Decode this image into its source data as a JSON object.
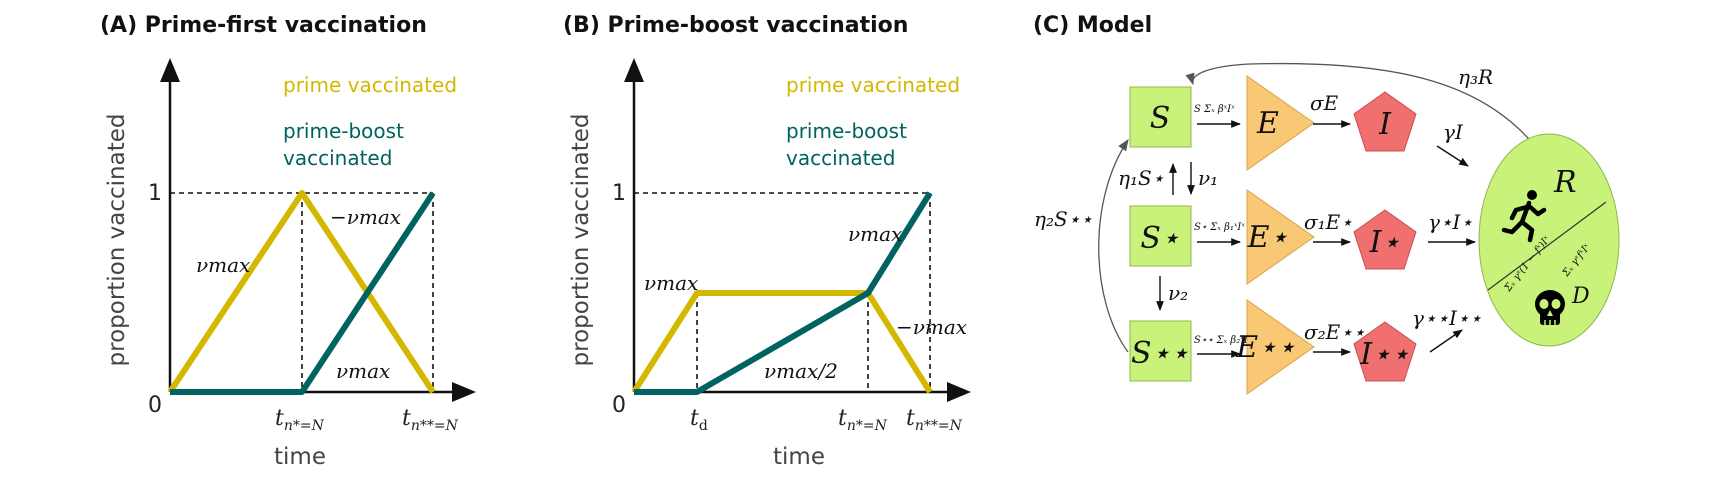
{
  "colors": {
    "prime": "#d4b800",
    "prime_boost": "#006360",
    "S_node": "#c8f27a",
    "E_node": "#f8c874",
    "I_node": "#f07070",
    "R_node": "#c8f27a"
  },
  "panel_a": {
    "title": "(A) Prime-first vaccination",
    "ylabel": "proportion vaccinated",
    "xlabel": "time",
    "y_tick_0": "0",
    "y_tick_1": "1",
    "x_tick_1": "t",
    "x_tick_1_sub": "n*=N",
    "x_tick_2": "t",
    "x_tick_2_sub": "n**=N",
    "legend_prime": "prime vaccinated",
    "legend_pb_1": "prime-boost",
    "legend_pb_2": "vaccinated",
    "rate_up": "νmax",
    "rate_down": "−νmax",
    "rate_boost": "νmax"
  },
  "panel_b": {
    "title": "(B) Prime-boost vaccination",
    "ylabel": "proportion vaccinated",
    "xlabel": "time",
    "y_tick_0": "0",
    "y_tick_1": "1",
    "x_tick_d": "t",
    "x_tick_d_sub": "d",
    "x_tick_1": "t",
    "x_tick_1_sub": "n*=N",
    "x_tick_2": "t",
    "x_tick_2_sub": "n**=N",
    "legend_prime": "prime vaccinated",
    "legend_pb_1": "prime-boost",
    "legend_pb_2": "vaccinated",
    "rate_prime_up": "νmax",
    "rate_half": "νmax/2",
    "rate_boost": "νmax",
    "rate_down": "−νmax"
  },
  "panel_c": {
    "title": "(C) Model",
    "nodes": {
      "S": "S",
      "S1": "S⋆",
      "S2": "S⋆⋆",
      "E": "E",
      "E1": "E⋆",
      "E2": "E⋆⋆",
      "I": "I",
      "I1": "I⋆",
      "I2": "I⋆⋆",
      "R": "R",
      "D": "D"
    },
    "arrows": {
      "force_S": "S Σₓ βˣIˣ",
      "force_S1": "S⋆ Σₓ β₁ˣIˣ",
      "force_S2": "S⋆⋆ Σₓ β₂ˣIˣ",
      "sigmaE": "σE",
      "sigma1E1": "σ₁E⋆",
      "sigma2E2": "σ₂E⋆⋆",
      "gammaI": "γI",
      "gamma1I1": "γ⋆I⋆",
      "gamma2I2": "γ⋆⋆I⋆⋆",
      "nu1": "ν₁",
      "nu2": "ν₂",
      "eta1": "η₁S⋆",
      "eta2": "η₂S⋆⋆",
      "eta3": "η₃R"
    },
    "ratio_num": "Σₓ γˣ(1 − fˣ)Iˣ",
    "ratio_den": "Σₓ γˣfˣIˣ",
    "icons": {
      "runner": "running-person-icon",
      "skull": "skull-icon"
    }
  }
}
